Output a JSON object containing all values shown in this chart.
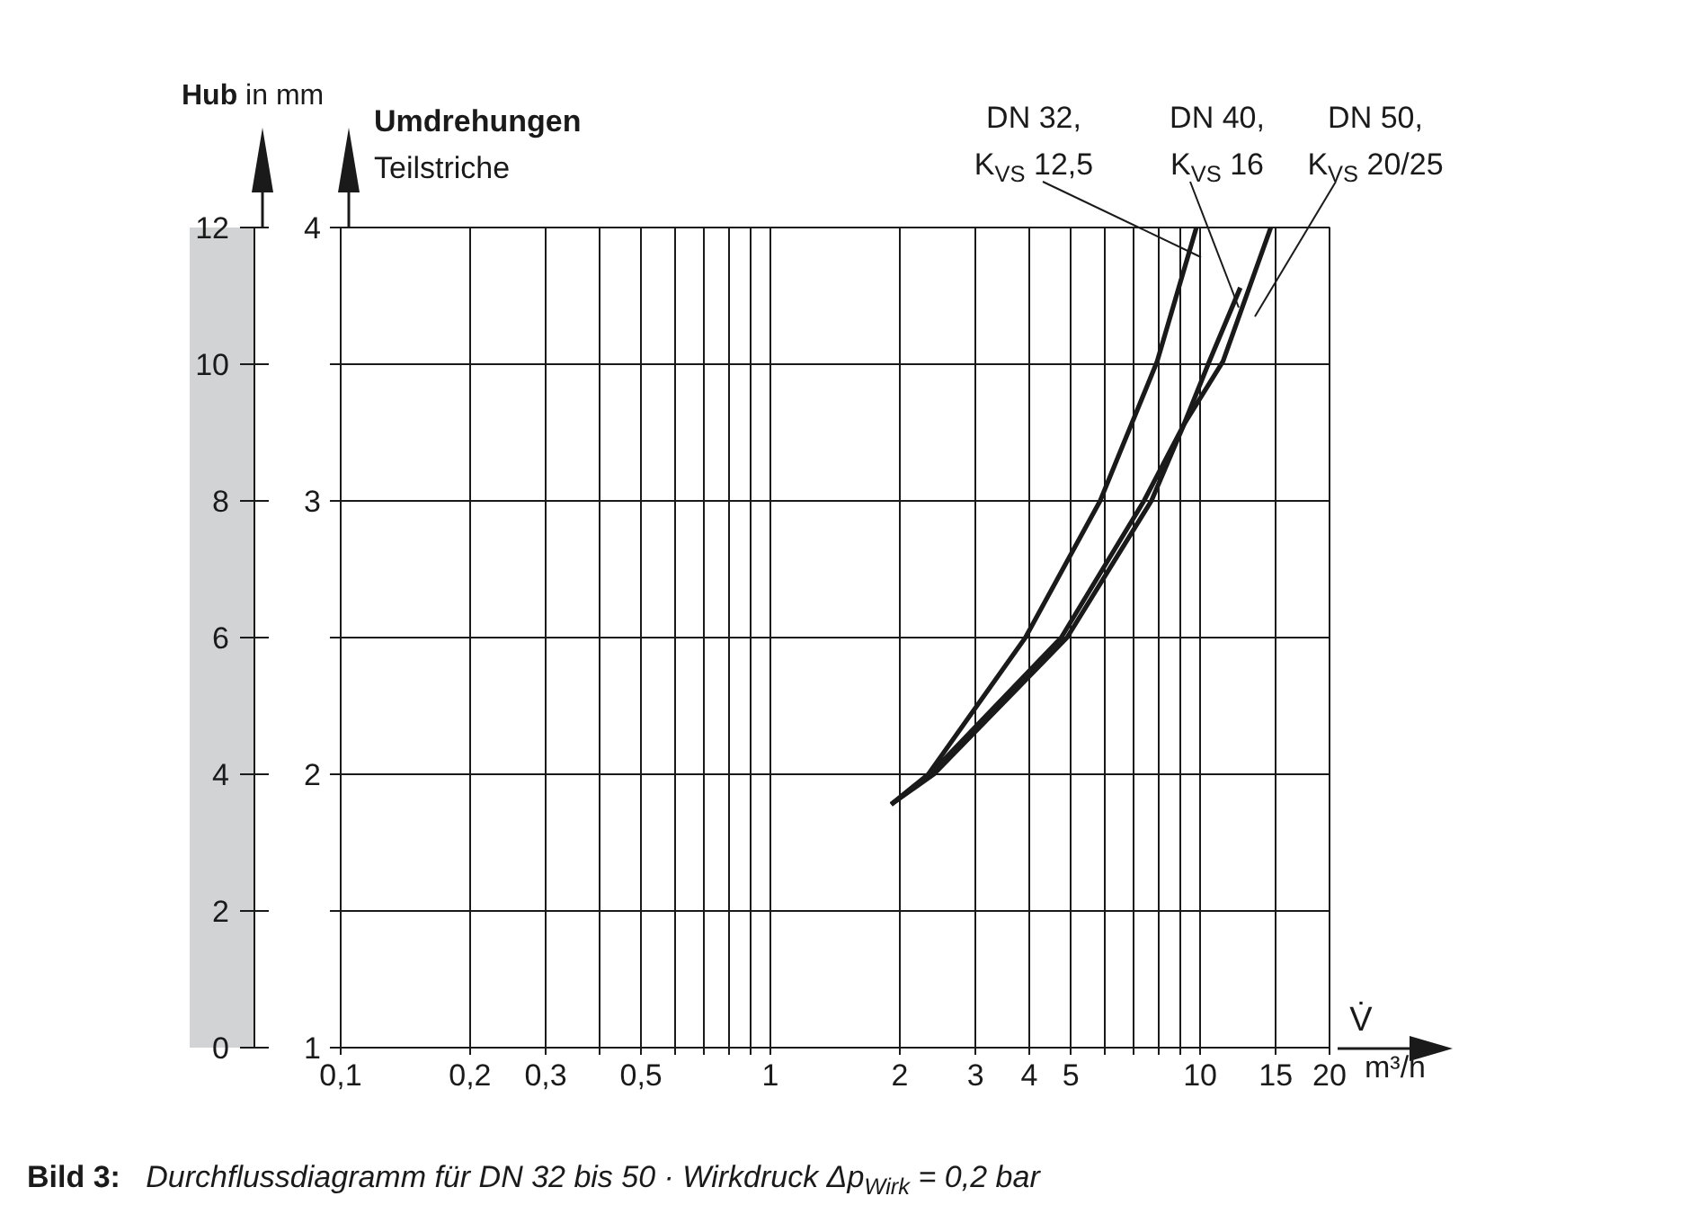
{
  "chart_data": {
    "type": "line",
    "xlabel": "V̇",
    "ylabel": "Umdrehungen\nTeilstriche",
    "y2label": "Hub in mm",
    "log": "x",
    "grid": true,
    "line_style": "solid",
    "marker": "none",
    "xlim": [
      0.1,
      20
    ],
    "xticks": [
      {
        "value": 0.1,
        "label": "0,1"
      },
      {
        "value": 0.2,
        "label": "0,2"
      },
      {
        "value": 0.3,
        "label": "0,3"
      },
      {
        "value": 0.4,
        "label": null
      },
      {
        "value": 0.5,
        "label": "0,5"
      },
      {
        "value": 0.6,
        "label": null
      },
      {
        "value": 0.7,
        "label": null
      },
      {
        "value": 0.8,
        "label": null
      },
      {
        "value": 0.9,
        "label": null
      },
      1,
      2,
      3,
      4,
      5,
      {
        "value": 6,
        "label": null
      },
      {
        "value": 7,
        "label": null
      },
      {
        "value": 8,
        "label": null
      },
      {
        "value": 9,
        "label": null
      },
      10,
      15,
      20
    ],
    "ylim": [
      1,
      4
    ],
    "yticks": [
      1,
      {
        "value": 1.5,
        "label": null
      },
      2,
      {
        "value": 2.5,
        "label": null
      },
      3,
      {
        "value": 3.5,
        "label": null
      },
      4
    ],
    "y2lim": [
      0,
      12
    ],
    "y2ticks": [
      0,
      2,
      4,
      6,
      8,
      10,
      12
    ],
    "annotations": [
      "m³/h",
      "Bild 3: Durchflussdiagramm für DN 32 bis 50 · Wirkdruck Δp$_{Wirk}$ = 0,2 bar"
    ],
    "series": [
      {
        "name": "DN 32, K$_{VS}$ 12,5",
        "color": "#1a1a1a",
        "x": [
          1.91,
          2.33,
          3.92,
          5.85,
          7.94,
          9.8
        ],
        "values": [
          1.89,
          2.0,
          2.5,
          3.0,
          3.51,
          4.0
        ]
      },
      {
        "name": "DN 40, K$_{VS}$ 16",
        "color": "#1a1a1a",
        "x": [
          1.91,
          2.4,
          4.9,
          7.7,
          9.17,
          10.5,
          12.4
        ],
        "values": [
          1.89,
          2.0,
          2.5,
          3.0,
          3.28,
          3.51,
          3.78
        ]
      },
      {
        "name": "DN 50, K$_{VS}$ 20/25",
        "color": "#1a1a1a",
        "x": [
          1.91,
          2.35,
          4.75,
          7.4,
          9.17,
          11.3,
          14.6
        ],
        "values": [
          1.89,
          2.0,
          2.5,
          3.0,
          3.28,
          3.51,
          4.0
        ]
      }
    ]
  }
}
